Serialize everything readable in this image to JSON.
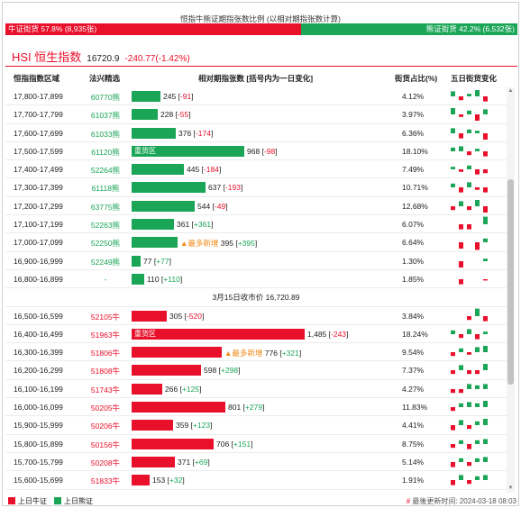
{
  "ratio": {
    "title": "恒指牛熊证期指张数比例 (以相对期指张数计算)",
    "bull_label": "牛证街货 57.8% (8,935张)",
    "bear_label": "熊证街货 42.2% (6,532张)",
    "bull_pct": 57.8
  },
  "index": {
    "name": "HSI 恒生指数",
    "price": "16720.9",
    "change": "-240.77(-1.42%)"
  },
  "header": {
    "range": "恒指指数区域",
    "code": "法兴精选",
    "contracts": "相对期指张数 [括号内为一日变化]",
    "pct": "街货占比(%)",
    "trend": "五日街货变化"
  },
  "close_row": "3月15日收市价 16,720.89",
  "colors": {
    "bull": "#e8102a",
    "bear": "#1aa557",
    "mark": "#f08a17"
  },
  "bear_rows": [
    {
      "range": "17,800-17,899",
      "code": "60770熊",
      "value": 245,
      "tag": "",
      "mark": "",
      "num": "245",
      "chg": "-91",
      "pct": "4.12%",
      "spark": [
        4,
        -3,
        2,
        5,
        -4
      ]
    },
    {
      "range": "17,700-17,799",
      "code": "61037熊",
      "value": 228,
      "tag": "",
      "mark": "",
      "num": "228",
      "chg": "-55",
      "pct": "3.97%",
      "spark": [
        5,
        -2,
        3,
        -5,
        4
      ]
    },
    {
      "range": "17,600-17,699",
      "code": "61033熊",
      "value": 376,
      "tag": "",
      "mark": "",
      "num": "376",
      "chg": "-174",
      "pct": "6.36%",
      "spark": [
        4,
        -4,
        3,
        2,
        -5
      ]
    },
    {
      "range": "17,500-17,599",
      "code": "61120熊",
      "value": 968,
      "tag": "重货区",
      "mark": "",
      "num": "968",
      "chg": "-98",
      "pct": "18.10%",
      "spark": [
        3,
        4,
        -3,
        2,
        -4
      ]
    },
    {
      "range": "17,400-17,499",
      "code": "52264熊",
      "value": 445,
      "tag": "",
      "mark": "",
      "num": "445",
      "chg": "-184",
      "pct": "7.49%",
      "spark": [
        2,
        -2,
        3,
        -4,
        -3
      ]
    },
    {
      "range": "17,300-17,399",
      "code": "61118熊",
      "value": 637,
      "tag": "",
      "mark": "",
      "num": "637",
      "chg": "-193",
      "pct": "10.71%",
      "spark": [
        3,
        -4,
        4,
        -2,
        -4
      ]
    },
    {
      "range": "17,200-17,299",
      "code": "63775熊",
      "value": 544,
      "tag": "",
      "mark": "",
      "num": "544",
      "chg": "-49",
      "pct": "12.68%",
      "spark": [
        -3,
        4,
        -3,
        5,
        -5
      ]
    },
    {
      "range": "17,100-17,199",
      "code": "52263熊",
      "value": 361,
      "tag": "",
      "mark": "",
      "num": "361",
      "chg": "+361",
      "pct": "6.07%",
      "spark": [
        0,
        -4,
        -4,
        0,
        6
      ]
    },
    {
      "range": "17,000-17,099",
      "code": "52250熊",
      "value": 395,
      "tag": "",
      "mark": "▲最多新增",
      "num": "395",
      "chg": "+395",
      "pct": "6.64%",
      "spark": [
        0,
        -5,
        0,
        -6,
        3
      ]
    },
    {
      "range": "16,900-16,999",
      "code": "52249熊",
      "value": 77,
      "tag": "",
      "mark": "",
      "num": "77",
      "chg": "+77",
      "pct": "1.30%",
      "spark": [
        0,
        -5,
        0,
        0,
        2
      ]
    },
    {
      "range": "16,800-16,899",
      "code": "-",
      "value": 110,
      "tag": "",
      "mark": "",
      "num": "110",
      "chg": "+110",
      "pct": "1.85%",
      "spark": [
        0,
        -4,
        0,
        0,
        -1
      ]
    }
  ],
  "bull_rows": [
    {
      "range": "16,500-16,599",
      "code": "52105牛",
      "value": 305,
      "tag": "",
      "mark": "",
      "num": "305",
      "chg": "-520",
      "pct": "3.84%",
      "spark": [
        0,
        0,
        -3,
        6,
        -4
      ]
    },
    {
      "range": "16,400-16,499",
      "code": "51963牛",
      "value": 1485,
      "tag": "重货区",
      "mark": "",
      "num": "1,485",
      "chg": "-243",
      "pct": "18.24%",
      "spark": [
        3,
        -3,
        4,
        -4,
        2
      ]
    },
    {
      "range": "16,300-16,399",
      "code": "51806牛",
      "value": 776,
      "tag": "",
      "mark": "▲最多新增",
      "num": "776",
      "chg": "+321",
      "pct": "9.54%",
      "spark": [
        -3,
        3,
        -2,
        4,
        5
      ]
    },
    {
      "range": "16,200-16,299",
      "code": "51808牛",
      "value": 598,
      "tag": "",
      "mark": "",
      "num": "598",
      "chg": "+298",
      "pct": "7.37%",
      "spark": [
        -3,
        4,
        -3,
        -3,
        5
      ]
    },
    {
      "range": "16,100-16,199",
      "code": "51743牛",
      "value": 266,
      "tag": "",
      "mark": "",
      "num": "266",
      "chg": "+125",
      "pct": "4.27%",
      "spark": [
        -3,
        -3,
        4,
        3,
        4
      ]
    },
    {
      "range": "16,000-16,099",
      "code": "50205牛",
      "value": 801,
      "tag": "",
      "mark": "",
      "num": "801",
      "chg": "+279",
      "pct": "11.83%",
      "spark": [
        -3,
        3,
        4,
        3,
        5
      ]
    },
    {
      "range": "15,900-15,999",
      "code": "50206牛",
      "value": 359,
      "tag": "",
      "mark": "",
      "num": "359",
      "chg": "+123",
      "pct": "4.41%",
      "spark": [
        -4,
        4,
        -3,
        3,
        5
      ]
    },
    {
      "range": "15,800-15,899",
      "code": "50156牛",
      "value": 706,
      "tag": "",
      "mark": "",
      "num": "706",
      "chg": "+151",
      "pct": "8.75%",
      "spark": [
        -3,
        3,
        -4,
        3,
        4
      ]
    },
    {
      "range": "15,700-15,799",
      "code": "50208牛",
      "value": 371,
      "tag": "",
      "mark": "",
      "num": "371",
      "chg": "+69",
      "pct": "5.14%",
      "spark": [
        -4,
        3,
        -3,
        3,
        4
      ]
    },
    {
      "range": "15,600-15,699",
      "code": "51833牛",
      "value": 153,
      "tag": "",
      "mark": "",
      "num": "153",
      "chg": "+32",
      "pct": "1.91%",
      "spark": [
        -4,
        4,
        -3,
        3,
        4
      ]
    }
  ],
  "footer": {
    "bull_legend": "上日牛证",
    "bear_legend": "上日熊证",
    "updated_prefix": "#",
    "updated": "最後更新时间: 2024-03-18 08:03"
  }
}
